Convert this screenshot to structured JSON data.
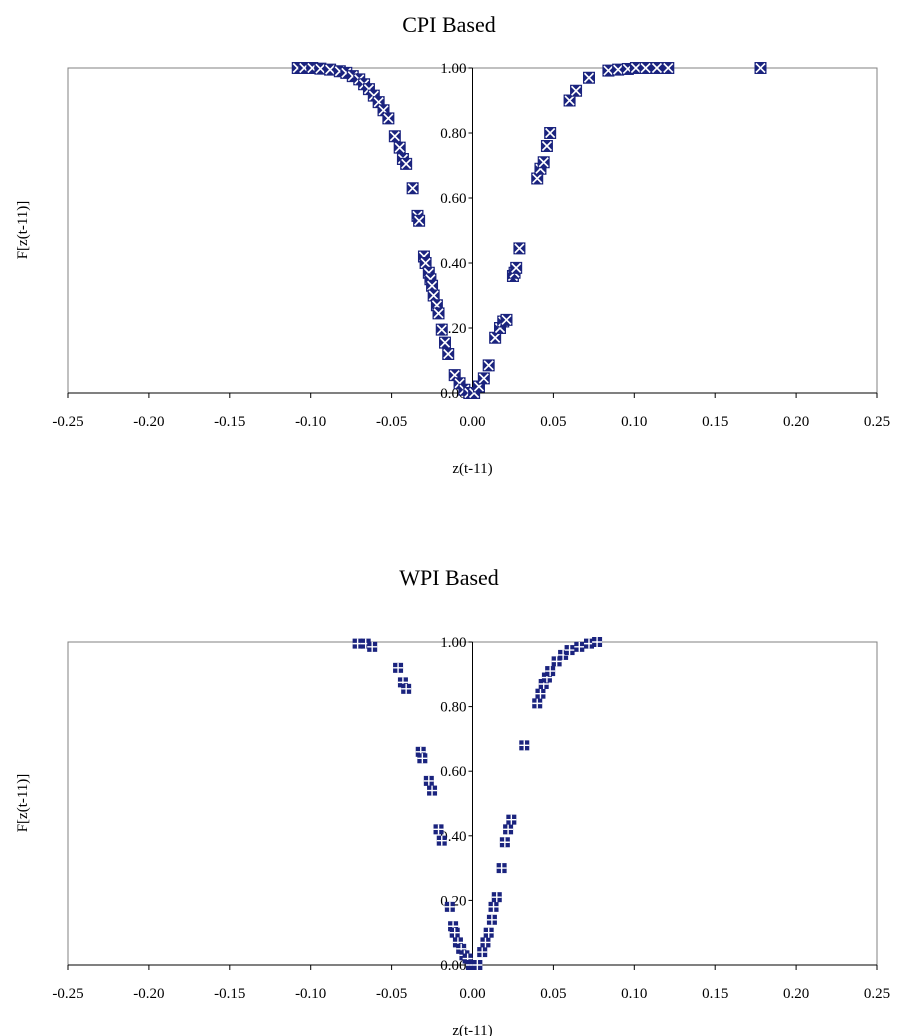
{
  "chart_data": [
    {
      "type": "scatter",
      "title": "CPI Based",
      "xlabel": "z(t-11)",
      "ylabel": "F[z(t-11)]",
      "xlim": [
        -0.25,
        0.25
      ],
      "ylim": [
        0,
        1
      ],
      "x_ticks": [
        "-0.25",
        "-0.20",
        "-0.15",
        "-0.10",
        "-0.05",
        "0.00",
        "0.05",
        "0.10",
        "0.15",
        "0.20",
        "0.25"
      ],
      "y_ticks": [
        "0.00",
        "0.20",
        "0.40",
        "0.60",
        "0.80",
        "1.00"
      ],
      "grid": false,
      "legend": "none",
      "marker": "x-square",
      "marker_color": "#1a237e",
      "series": [
        {
          "x": [
            -0.108,
            -0.104,
            -0.099,
            -0.094,
            -0.088,
            -0.082,
            -0.078,
            -0.074,
            -0.07,
            -0.067,
            -0.064,
            -0.061,
            -0.058,
            -0.055,
            -0.052,
            -0.048,
            -0.045,
            -0.043,
            -0.041,
            -0.037,
            -0.034,
            -0.033,
            -0.03,
            -0.029,
            -0.027,
            -0.026,
            -0.025,
            -0.024,
            -0.022,
            -0.021,
            -0.019,
            -0.017,
            -0.015,
            -0.011,
            -0.008,
            -0.005,
            -0.002,
            0.001,
            0.004,
            0.007,
            0.01,
            0.014,
            0.017,
            0.019,
            0.021,
            0.025,
            0.026,
            0.027,
            0.029,
            0.04,
            0.042,
            0.044,
            0.046,
            0.048,
            0.06,
            0.064,
            0.072,
            0.084,
            0.09,
            0.096,
            0.101,
            0.107,
            0.114,
            0.121,
            0.178
          ],
          "y": [
            1.0,
            1.0,
            1.0,
            0.998,
            0.995,
            0.99,
            0.985,
            0.975,
            0.965,
            0.95,
            0.935,
            0.915,
            0.895,
            0.87,
            0.845,
            0.79,
            0.755,
            0.72,
            0.705,
            0.63,
            0.545,
            0.53,
            0.42,
            0.4,
            0.37,
            0.35,
            0.33,
            0.3,
            0.27,
            0.245,
            0.195,
            0.155,
            0.12,
            0.055,
            0.03,
            0.01,
            0.0,
            0.0,
            0.02,
            0.045,
            0.085,
            0.17,
            0.2,
            0.22,
            0.225,
            0.36,
            0.37,
            0.385,
            0.445,
            0.66,
            0.69,
            0.71,
            0.76,
            0.8,
            0.9,
            0.93,
            0.97,
            0.992,
            0.995,
            0.997,
            1.0,
            1.0,
            1.0,
            1.0,
            1.0
          ]
        }
      ]
    },
    {
      "type": "scatter",
      "title": "WPI Based",
      "xlabel": "z(t-11)",
      "ylabel": "F[z(t-11)]",
      "xlim": [
        -0.25,
        0.25
      ],
      "ylim": [
        0,
        1
      ],
      "x_ticks": [
        "-0.25",
        "-0.20",
        "-0.15",
        "-0.10",
        "-0.05",
        "0.00",
        "0.05",
        "0.10",
        "0.15",
        "0.20",
        "0.25"
      ],
      "y_ticks": [
        "0.00",
        "0.20",
        "0.40",
        "0.60",
        "0.80",
        "1.00"
      ],
      "grid": false,
      "legend": "none",
      "marker": "filled-square",
      "marker_color": "#1a237e",
      "series": [
        {
          "x": [
            -0.071,
            -0.066,
            -0.062,
            -0.046,
            -0.043,
            -0.041,
            -0.032,
            -0.031,
            -0.027,
            -0.025,
            -0.021,
            -0.019,
            -0.014,
            -0.012,
            -0.011,
            -0.009,
            -0.007,
            -0.005,
            -0.003,
            -0.001,
            0.001,
            0.003,
            0.006,
            0.008,
            0.01,
            0.012,
            0.013,
            0.015,
            0.018,
            0.02,
            0.022,
            0.024,
            0.032,
            0.04,
            0.042,
            0.044,
            0.046,
            0.048,
            0.052,
            0.056,
            0.06,
            0.066,
            0.072,
            0.077
          ],
          "y": [
            0.995,
            0.995,
            0.985,
            0.92,
            0.875,
            0.855,
            0.66,
            0.64,
            0.57,
            0.54,
            0.42,
            0.385,
            0.18,
            0.12,
            0.1,
            0.07,
            0.05,
            0.03,
            0.02,
            0.0,
            0.0,
            0.0,
            0.04,
            0.07,
            0.1,
            0.14,
            0.18,
            0.21,
            0.3,
            0.38,
            0.42,
            0.45,
            0.68,
            0.81,
            0.84,
            0.87,
            0.89,
            0.91,
            0.94,
            0.96,
            0.975,
            0.985,
            0.995,
            1.0
          ]
        }
      ]
    }
  ]
}
